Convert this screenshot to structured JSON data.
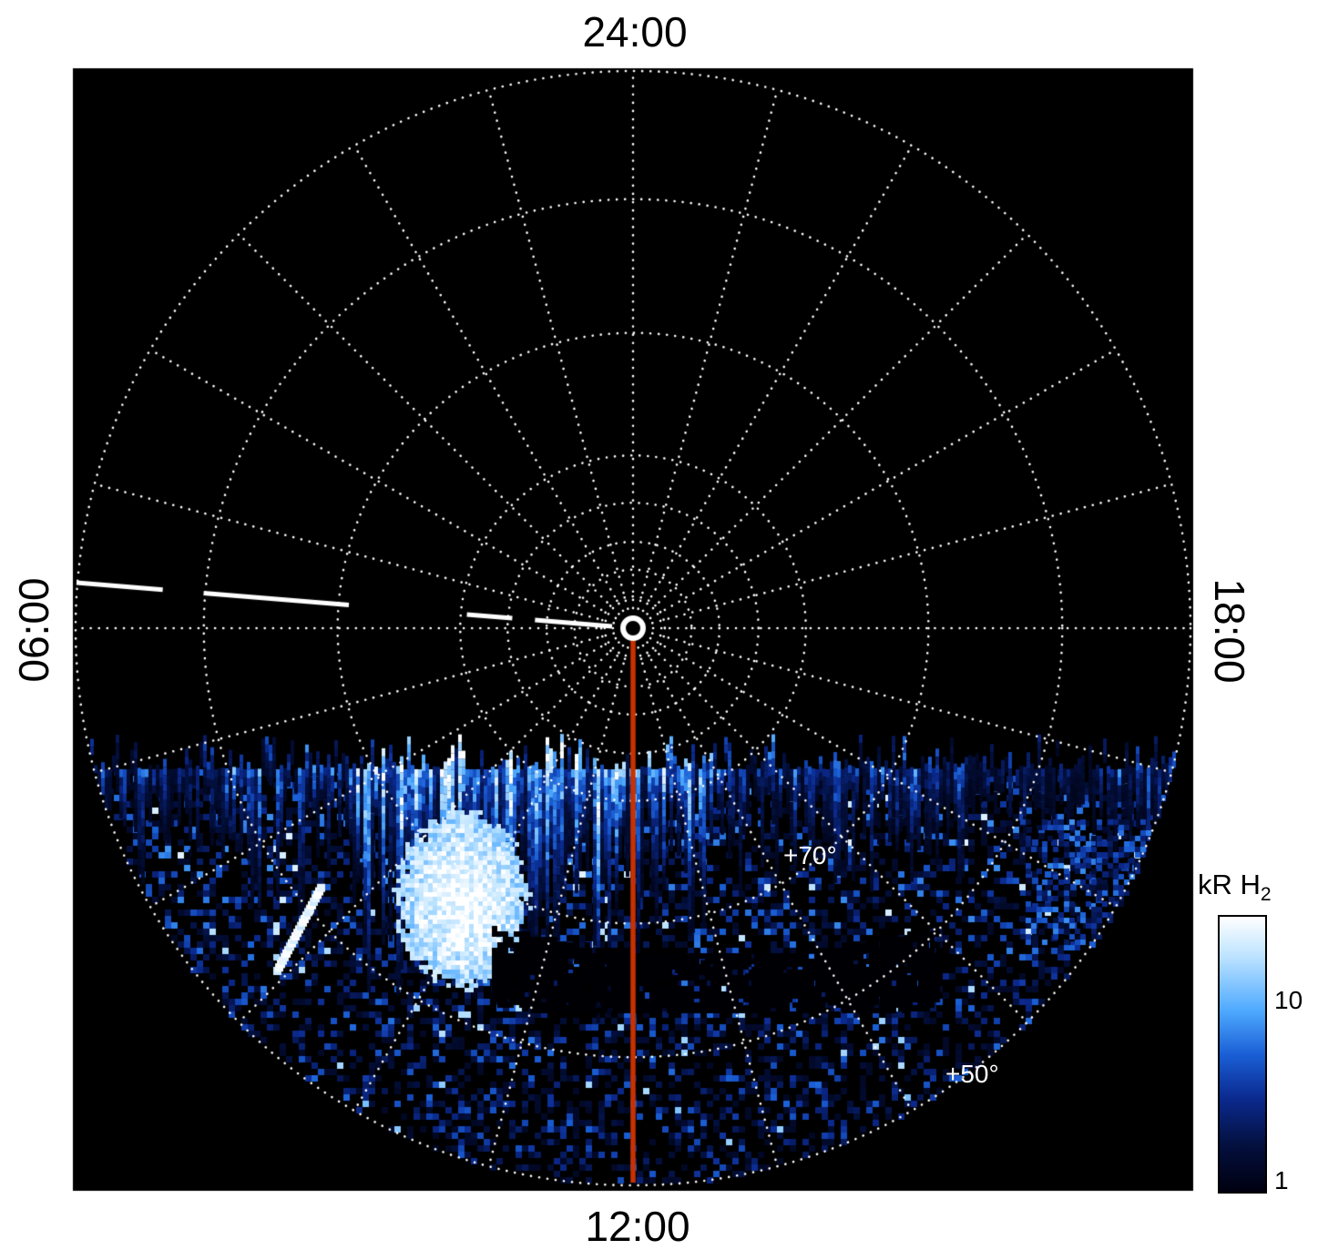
{
  "figure": {
    "type": "auroral polar projection image",
    "background": "#ffffff",
    "plot_background": "#000000"
  },
  "labels": {
    "top": "24:00",
    "bottom": "12:00",
    "left": "06:00",
    "right": "18:00",
    "lat70": "+70°",
    "lat50": "+50°"
  },
  "colorbar": {
    "title_main": "kR H",
    "title_sub": "2",
    "tick_top": "10",
    "tick_bottom": "1",
    "scale": "log",
    "min_kR": 1,
    "max_kR": 30,
    "gradient": [
      "#ffffff 0%",
      "#bfe4ff 14%",
      "#4faaff 34%",
      "#1a5fd6 50%",
      "#0b2a8f 66%",
      "#03103f 83%",
      "#000010 100%"
    ]
  },
  "colors": {
    "grid": "#ffffff",
    "meridian_line": "#c83200",
    "dashed_line": "#ffffff",
    "emission_palette": [
      "#00000c",
      "#03103f",
      "#0b2a8f",
      "#1a5fd6",
      "#4faaff",
      "#bfe4ff",
      "#ffffff"
    ]
  },
  "chart_data": {
    "type": "heatmap",
    "projection": "polar, planetary pole at center, local time around circumference",
    "local_time_ticks": [
      "24:00 top",
      "12:00 bottom",
      "06:00 left",
      "18:00 right"
    ],
    "radial_spoke_interval_hours": 1,
    "latitude_circle_labels": [
      "+70°",
      "+50°"
    ],
    "quantity": "H2 auroral emission brightness",
    "units": "kR",
    "color_scale": {
      "type": "log",
      "min": 1,
      "max": 30,
      "tick_values": [
        1,
        10
      ]
    },
    "emission_extent": "dayside (lower) half of polar disk only; nightside (upper) half dark",
    "features": [
      {
        "name": "bright-auroral-patch",
        "local_time": "~10:30",
        "latitude": "~+65°",
        "brightness": "saturated white, >30 kR"
      },
      {
        "name": "patchy-emission-band",
        "description": "streaky blue emission strongest near +75° across the dayside limb"
      },
      {
        "name": "dark-lane",
        "local_time": "12:00-15:00",
        "latitude": "~+68°",
        "description": "low-emission dark arc inside the emission band"
      },
      {
        "name": "speckled-emission",
        "description": "scattered few-kR patches extending down to ~+45°"
      }
    ],
    "annotations": [
      {
        "name": "noon-meridian-line",
        "color": "#c83200",
        "from": "pole",
        "to": "12:00 limb"
      },
      {
        "name": "dawnside-dashed-line",
        "color": "#ffffff",
        "style": "dashed",
        "from": "06:00 edge",
        "to": "pole"
      },
      {
        "name": "pole-marker",
        "style": "white ring at disk center"
      }
    ]
  }
}
